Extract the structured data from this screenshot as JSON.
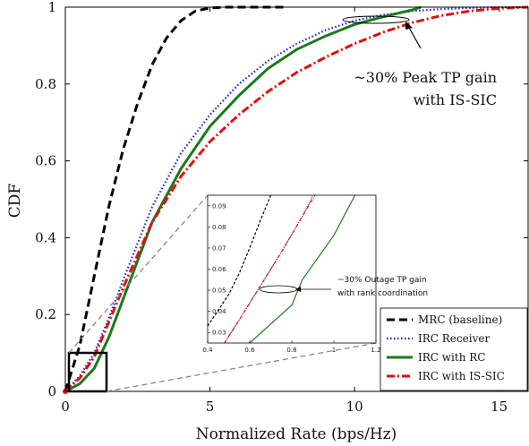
{
  "chart_data": {
    "type": "line",
    "xlabel": "Normalized Rate (bps/Hz)",
    "ylabel": "CDF",
    "xlim": [
      0,
      16
    ],
    "ylim": [
      0,
      1
    ],
    "xticks": [
      "0",
      "5",
      "10",
      "15"
    ],
    "yticks": [
      "0",
      "0.2",
      "0.4",
      "0.6",
      "0.8",
      "1"
    ],
    "grid": false,
    "legend_position": "bottom-right",
    "series": [
      {
        "name": "MRC (baseline)",
        "color": "#000000",
        "dash": "dashed",
        "x": [
          0,
          0.5,
          1.0,
          1.5,
          2.0,
          2.5,
          3.0,
          3.5,
          4.0,
          4.5,
          5.0,
          5.5,
          6.0,
          7.0,
          7.6
        ],
        "y": [
          0,
          0.12,
          0.3,
          0.48,
          0.63,
          0.75,
          0.85,
          0.92,
          0.965,
          0.99,
          0.998,
          1.0,
          1.0,
          1.0,
          1.0
        ]
      },
      {
        "name": "IRC Receiver",
        "color": "#1a1adc",
        "dash": "dotted",
        "x": [
          0,
          0.5,
          1.0,
          1.5,
          2.0,
          3.0,
          4.0,
          5.0,
          6.0,
          7.0,
          8.0,
          9.0,
          10.0,
          11.0,
          12.0,
          13.0,
          14.0,
          15.0,
          16.0
        ],
        "y": [
          0,
          0.04,
          0.1,
          0.19,
          0.29,
          0.48,
          0.62,
          0.72,
          0.8,
          0.86,
          0.905,
          0.94,
          0.965,
          0.98,
          0.99,
          0.995,
          0.998,
          1.0,
          1.0
        ]
      },
      {
        "name": "IRC with RC",
        "color": "#1a7a1a",
        "dash": "solid",
        "x": [
          0,
          0.5,
          1.0,
          1.5,
          2.0,
          3.0,
          4.0,
          5.0,
          6.0,
          7.0,
          8.0,
          9.0,
          10.0,
          11.0,
          12.0,
          12.3
        ],
        "y": [
          0,
          0.02,
          0.06,
          0.14,
          0.24,
          0.44,
          0.58,
          0.69,
          0.77,
          0.84,
          0.89,
          0.925,
          0.955,
          0.975,
          0.993,
          1.0
        ]
      },
      {
        "name": "IRC with IS-SIC",
        "color": "#e01010",
        "dash": "dashdot",
        "x": [
          0,
          0.5,
          1.0,
          1.5,
          2.0,
          3.0,
          4.0,
          5.0,
          6.0,
          7.0,
          8.0,
          9.0,
          10.0,
          11.0,
          12.0,
          13.0,
          14.0,
          15.0,
          16.0
        ],
        "y": [
          0,
          0.035,
          0.09,
          0.18,
          0.27,
          0.44,
          0.56,
          0.65,
          0.72,
          0.78,
          0.83,
          0.87,
          0.905,
          0.935,
          0.96,
          0.978,
          0.99,
          0.997,
          1.0
        ]
      }
    ],
    "annotations": [
      {
        "line1": "~30% Peak TP gain",
        "line2": "with IS-SIC"
      }
    ],
    "inset": {
      "xlim": [
        0.4,
        1.2
      ],
      "ylim": [
        0.025,
        0.095
      ],
      "xticks": [
        "0.4",
        "0.6",
        "0.8",
        "1",
        "1.2"
      ],
      "yticks": [
        "0.03",
        "0.04",
        "0.05",
        "0.06",
        "0.07",
        "0.08",
        "0.09"
      ],
      "annotation_line1": "~30% Outage TP gain",
      "annotation_line2": "with rank coordination",
      "series": [
        {
          "name": "MRC (baseline)",
          "x": [
            0.4,
            0.5,
            0.55,
            0.6,
            0.65,
            0.7
          ],
          "y": [
            0.033,
            0.048,
            0.058,
            0.07,
            0.083,
            0.095
          ]
        },
        {
          "name": "IRC Receiver",
          "x": [
            0.48,
            0.55,
            0.65,
            0.75,
            0.85,
            0.9
          ],
          "y": [
            0.025,
            0.036,
            0.052,
            0.068,
            0.085,
            0.095
          ]
        },
        {
          "name": "IRC with RC",
          "x": [
            0.6,
            0.7,
            0.8,
            0.85,
            0.9,
            1.0,
            1.1
          ],
          "y": [
            0.025,
            0.034,
            0.043,
            0.055,
            0.062,
            0.076,
            0.095
          ]
        },
        {
          "name": "IRC with IS-SIC",
          "x": [
            0.48,
            0.55,
            0.65,
            0.75,
            0.85,
            0.91
          ],
          "y": [
            0.025,
            0.036,
            0.052,
            0.068,
            0.085,
            0.095
          ]
        }
      ]
    }
  }
}
